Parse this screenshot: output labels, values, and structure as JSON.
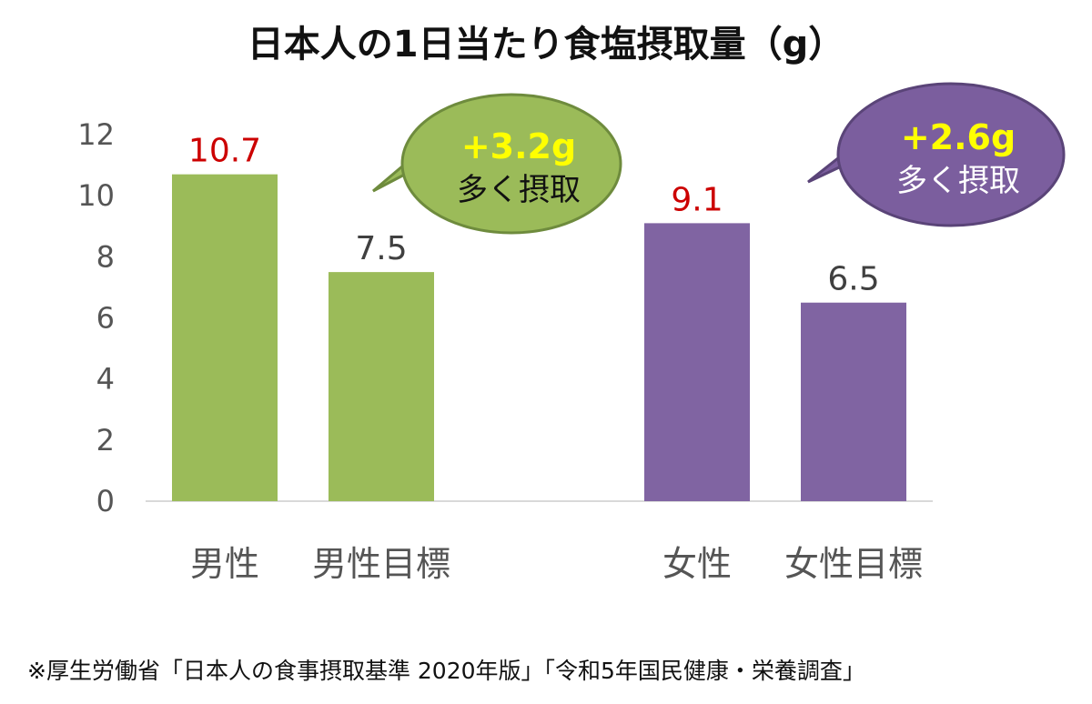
{
  "chart_data": {
    "type": "bar",
    "title": "日本人の1日当たり食塩摂取量（g）",
    "xlabel": "",
    "ylabel": "",
    "ylim": [
      0,
      12
    ],
    "yticks": [
      "0",
      "2",
      "4",
      "6",
      "8",
      "10",
      "12"
    ],
    "grid": false,
    "bars": [
      {
        "category": "男性",
        "value": 10.7,
        "label": "10.7",
        "color": "#9BBB59",
        "label_color": "#CC0000"
      },
      {
        "category": "男性目標",
        "value": 7.5,
        "label": "7.5",
        "color": "#9BBB59",
        "label_color": "#404040"
      },
      {
        "category": "女性",
        "value": 9.1,
        "label": "9.1",
        "color": "#8064A2",
        "label_color": "#CC0000"
      },
      {
        "category": "女性目標",
        "value": 6.5,
        "label": "6.5",
        "color": "#8064A2",
        "label_color": "#404040"
      }
    ],
    "callouts": [
      {
        "line1": "+3.2g",
        "line2": "多く摂取",
        "fill": "#9BBB59",
        "stroke": "#6E8B3D",
        "line1_color": "#FFFF00",
        "line2_color": "#111111"
      },
      {
        "line1": "+2.6g",
        "line2": "多く摂取",
        "fill": "#7B5E9E",
        "stroke": "#5A4478",
        "line1_color": "#FFFF00",
        "line2_color": "#FFFFFF"
      }
    ]
  },
  "footnote": "※厚生労働省「日本人の食事摂取基準 2020年版」「令和5年国民健康・栄養調査」"
}
